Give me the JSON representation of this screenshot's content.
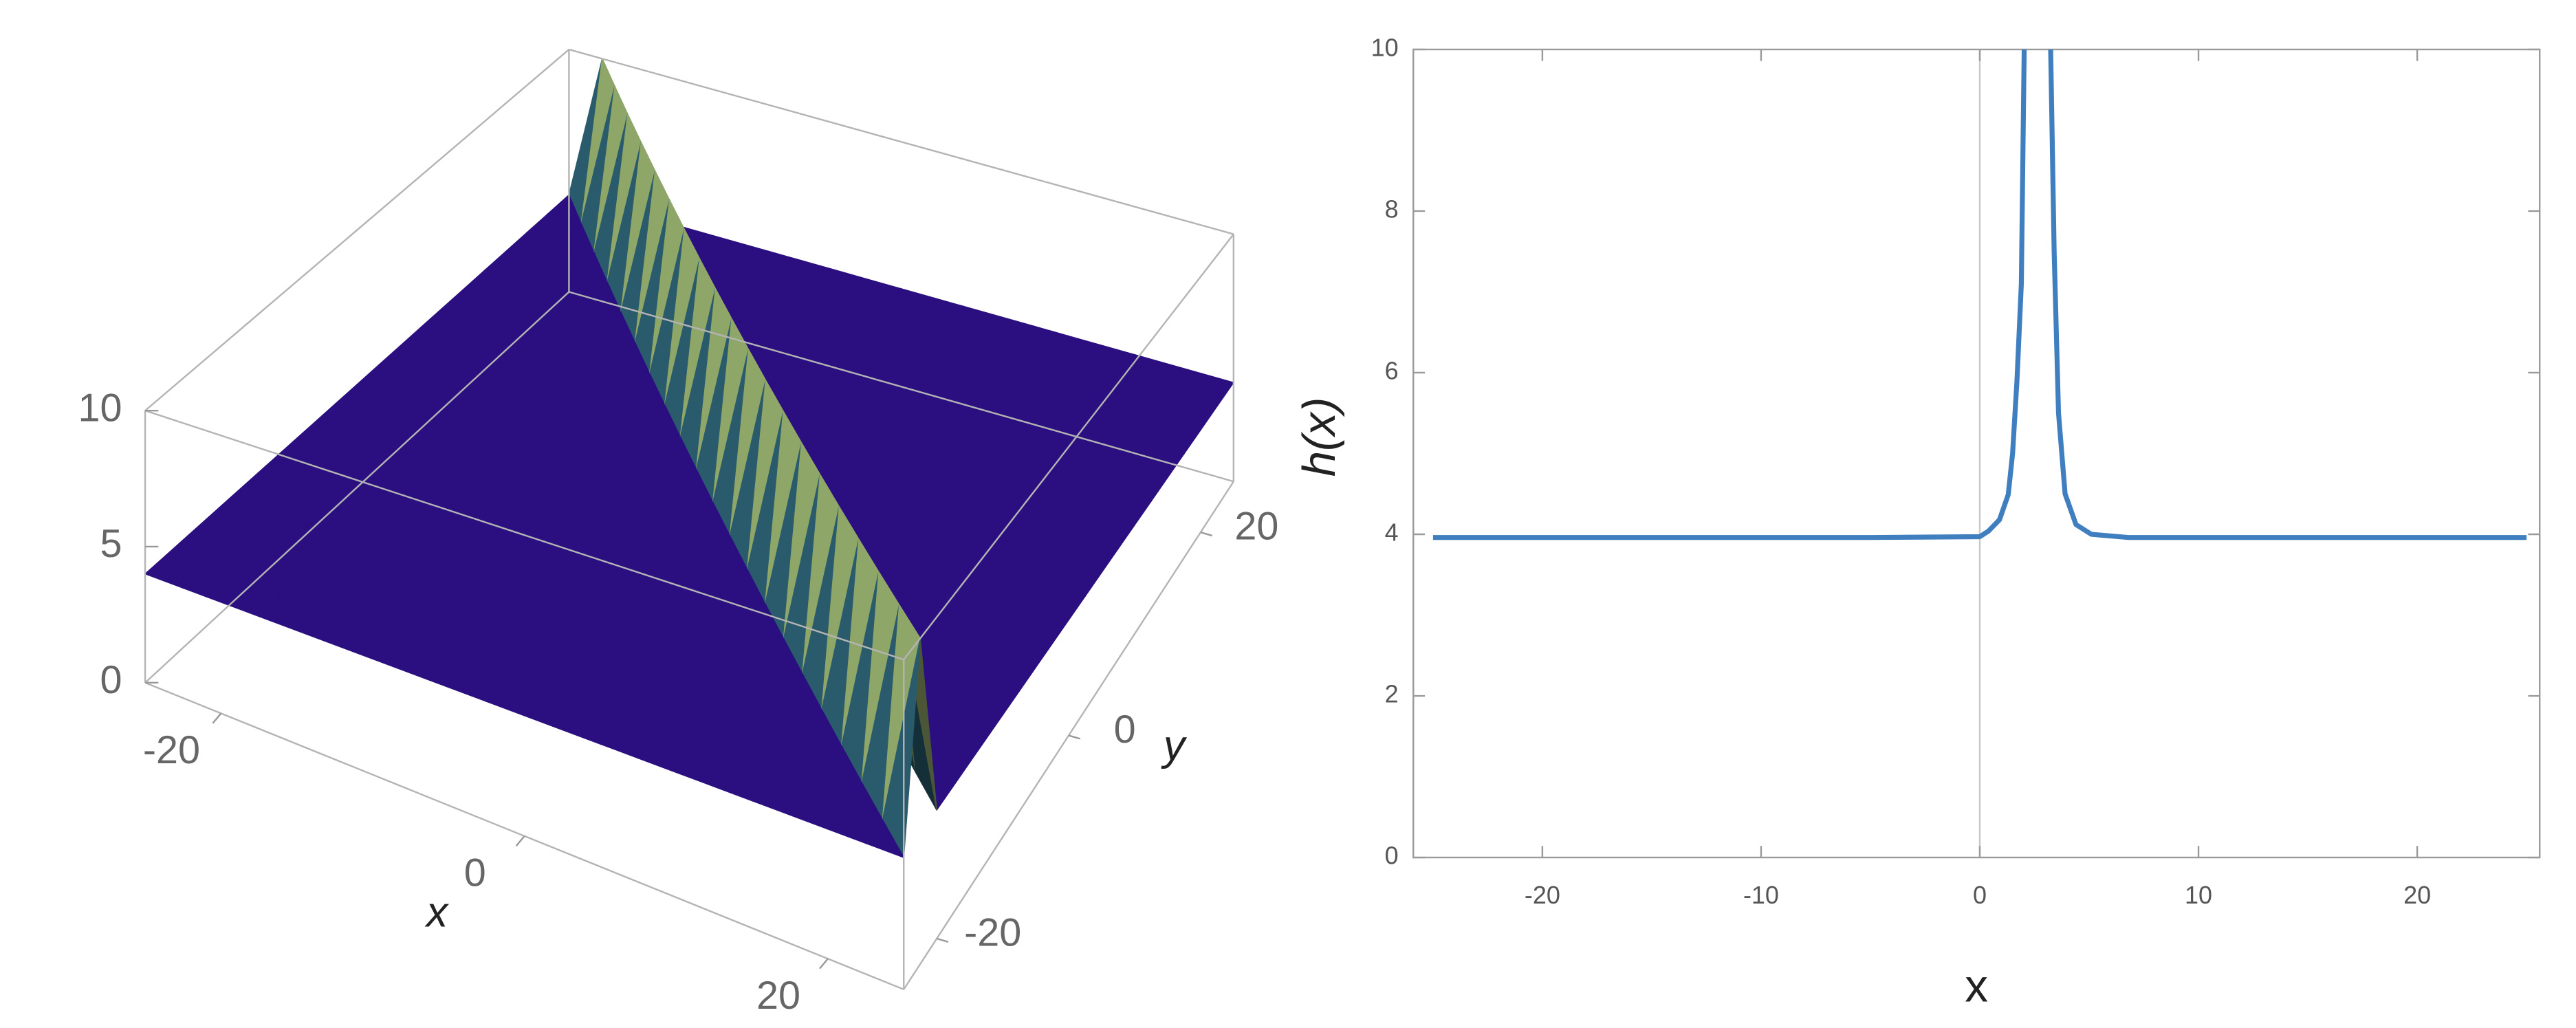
{
  "chart_data": [
    {
      "type": "surface3d",
      "x": [
        -25,
        -22.5,
        -20,
        -17.5,
        -15,
        -12.5,
        -10,
        -7.5,
        -5,
        -2.5,
        0,
        2.5,
        5,
        7.5,
        10,
        12.5,
        15,
        17.5,
        20,
        22.5,
        25
      ],
      "y": [
        -25,
        -22.5,
        -20,
        -17.5,
        -15,
        -12.5,
        -10,
        -7.5,
        -5,
        -2.5,
        0,
        2.5,
        5,
        7.5,
        10,
        12.5,
        15,
        17.5,
        20,
        22.5,
        25
      ],
      "z": [
        [
          4,
          4,
          4,
          4,
          4,
          4,
          4,
          4,
          4,
          4,
          4,
          4,
          4,
          4,
          4,
          4,
          4,
          4,
          4,
          4,
          4
        ],
        [
          4,
          4,
          4,
          4,
          4,
          4,
          4,
          4,
          4,
          4,
          4,
          4,
          4,
          4,
          4,
          4,
          4,
          4,
          4,
          4,
          10
        ],
        [
          4,
          4,
          4,
          4,
          4,
          4,
          4,
          4,
          4,
          4,
          4,
          4,
          4,
          4,
          4,
          4,
          4,
          4,
          4,
          10,
          4
        ],
        [
          4,
          4,
          4,
          4,
          4,
          4,
          4,
          4,
          4,
          4,
          4,
          4,
          4,
          4,
          4,
          4,
          4,
          4,
          10,
          4,
          4
        ],
        [
          4,
          4,
          4,
          4,
          4,
          4,
          4,
          4,
          4,
          4,
          4,
          4,
          4,
          4,
          4,
          4,
          4,
          10,
          4,
          4,
          4
        ],
        [
          4,
          4,
          4,
          4,
          4,
          4,
          4,
          4,
          4,
          4,
          4,
          4,
          4,
          4,
          4,
          4,
          10,
          4,
          4,
          4,
          4
        ],
        [
          4,
          4,
          4,
          4,
          4,
          4,
          4,
          4,
          4,
          4,
          4,
          4,
          4,
          4,
          4,
          10,
          4,
          4,
          4,
          4,
          4
        ],
        [
          4,
          4,
          4,
          4,
          4,
          4,
          4,
          4,
          4,
          4,
          4,
          4,
          4,
          4,
          10,
          4,
          4,
          4,
          4,
          4,
          4
        ],
        [
          4,
          4,
          4,
          4,
          4,
          4,
          4,
          4,
          4,
          4,
          4,
          4,
          4,
          10,
          4,
          4,
          4,
          4,
          4,
          4,
          4
        ],
        [
          4,
          4,
          4,
          4,
          4,
          4,
          4,
          4,
          4,
          4,
          4,
          4,
          10,
          4,
          4,
          4,
          4,
          4,
          4,
          4,
          4
        ],
        [
          4,
          4,
          4,
          4,
          4,
          4,
          4,
          4,
          4,
          4,
          4,
          10,
          4,
          4,
          4,
          4,
          4,
          4,
          4,
          4,
          4
        ],
        [
          4,
          4,
          4,
          4,
          4,
          4,
          4,
          4,
          4,
          4,
          10,
          4,
          4,
          4,
          4,
          4,
          4,
          4,
          4,
          4,
          4
        ],
        [
          4,
          4,
          4,
          4,
          4,
          4,
          4,
          4,
          4,
          10,
          4,
          4,
          4,
          4,
          4,
          4,
          4,
          4,
          4,
          4,
          4
        ],
        [
          4,
          4,
          4,
          4,
          4,
          4,
          4,
          4,
          10,
          4,
          4,
          4,
          4,
          4,
          4,
          4,
          4,
          4,
          4,
          4,
          4
        ],
        [
          4,
          4,
          4,
          4,
          4,
          4,
          4,
          10,
          4,
          4,
          4,
          4,
          4,
          4,
          4,
          4,
          4,
          4,
          4,
          4,
          4
        ],
        [
          4,
          4,
          4,
          4,
          4,
          4,
          10,
          4,
          4,
          4,
          4,
          4,
          4,
          4,
          4,
          4,
          4,
          4,
          4,
          4,
          4
        ],
        [
          4,
          4,
          4,
          4,
          4,
          10,
          4,
          4,
          4,
          4,
          4,
          4,
          4,
          4,
          4,
          4,
          4,
          4,
          4,
          4,
          4
        ],
        [
          4,
          4,
          4,
          4,
          10,
          4,
          4,
          4,
          4,
          4,
          4,
          4,
          4,
          4,
          4,
          4,
          4,
          4,
          4,
          4,
          4
        ],
        [
          4,
          4,
          4,
          10,
          4,
          4,
          4,
          4,
          4,
          4,
          4,
          4,
          4,
          4,
          4,
          4,
          4,
          4,
          4,
          4,
          4
        ],
        [
          4,
          4,
          10,
          4,
          4,
          4,
          4,
          4,
          4,
          4,
          4,
          4,
          4,
          4,
          4,
          4,
          4,
          4,
          4,
          4,
          4
        ],
        [
          4,
          10,
          4,
          4,
          4,
          4,
          4,
          4,
          4,
          4,
          4,
          4,
          4,
          4,
          4,
          4,
          4,
          4,
          4,
          4,
          4
        ]
      ],
      "xlim": [
        -25,
        25
      ],
      "ylim": [
        -25,
        25
      ],
      "zlim": [
        0,
        10
      ],
      "xticks": [
        -20,
        0,
        20
      ],
      "yticks": [
        -20,
        0,
        20
      ],
      "zticks": [
        0,
        5,
        10
      ],
      "xlabel": "x",
      "ylabel": "y"
    },
    {
      "type": "line",
      "x": [
        -25,
        -20,
        -15,
        -10,
        -5,
        0,
        0.4,
        0.9,
        1.3,
        1.5,
        1.7,
        1.9,
        2.03,
        2.63,
        3.24,
        3.4,
        3.6,
        3.9,
        4.4,
        5.1,
        6.8,
        10,
        15,
        20,
        25
      ],
      "values": [
        3.96,
        3.96,
        3.96,
        3.96,
        3.96,
        3.97,
        4.04,
        4.18,
        4.49,
        5.0,
        5.9,
        7.1,
        10,
        null,
        10,
        7.5,
        5.5,
        4.5,
        4.12,
        4.0,
        3.96,
        3.96,
        3.96,
        3.96,
        3.96
      ],
      "color": "#3f7fbf",
      "xlim": [
        -25.9,
        25.6
      ],
      "ylim": [
        0,
        10
      ],
      "xticks": [
        -20,
        -10,
        0,
        10,
        20
      ],
      "yticks": [
        0,
        2,
        4,
        6,
        8,
        10
      ],
      "xlabel": "x",
      "ylabel": "h(x)"
    }
  ]
}
